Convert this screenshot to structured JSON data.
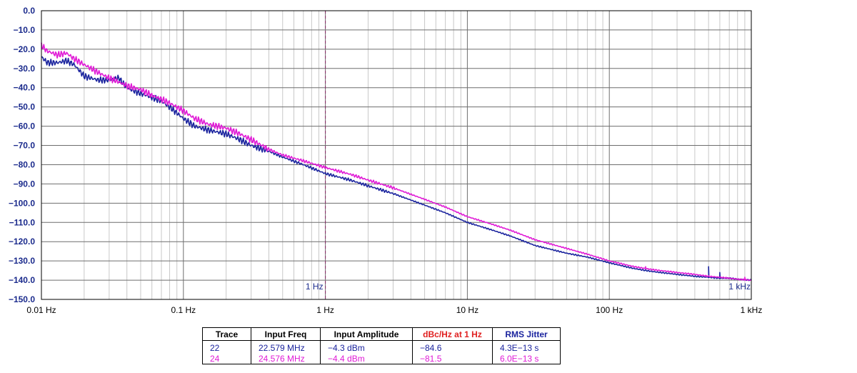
{
  "chart_data": {
    "type": "line",
    "x_scale": "log",
    "xlim": [
      0.01,
      1000
    ],
    "ylim": [
      -150,
      0
    ],
    "grid": true,
    "y_ticks": [
      "0.0",
      "-10.0",
      "-20.0",
      "-30.0",
      "-40.0",
      "-50.0",
      "-60.0",
      "-70.0",
      "-80.0",
      "-90.0",
      "-100.0",
      "-110.0",
      "-120.0",
      "-130.0",
      "-140.0",
      "-150.0"
    ],
    "x_ticks": [
      "0.01 Hz",
      "0.1 Hz",
      "1 Hz",
      "10 Hz",
      "100 Hz",
      "1 kHz"
    ],
    "markers": [
      {
        "x": 1,
        "label": "1 Hz",
        "color": "#8b2a6a"
      },
      {
        "x": 1000,
        "label": "1 kHz",
        "color": "#1a2a8c"
      }
    ],
    "series": [
      {
        "name": "22",
        "color": "#1a239e",
        "x": [
          0.01,
          0.011,
          0.013,
          0.015,
          0.017,
          0.02,
          0.025,
          0.03,
          0.035,
          0.04,
          0.05,
          0.06,
          0.07,
          0.08,
          0.1,
          0.12,
          0.15,
          0.2,
          0.25,
          0.3,
          0.4,
          0.5,
          0.7,
          1,
          1.5,
          2,
          3,
          5,
          7,
          10,
          15,
          20,
          30,
          50,
          70,
          100,
          150,
          200,
          300,
          400,
          500,
          600,
          700,
          800,
          1000
        ],
        "y": [
          -24,
          -27,
          -27,
          -26,
          -28,
          -34,
          -36,
          -36,
          -35,
          -40,
          -43,
          -45,
          -47,
          -50,
          -56,
          -60,
          -62,
          -64,
          -67,
          -70,
          -73,
          -76,
          -80,
          -84.6,
          -88,
          -91,
          -95,
          -101,
          -105,
          -110,
          -114,
          -117,
          -122,
          -126,
          -128,
          -131,
          -134,
          -135.5,
          -137,
          -138,
          -138.5,
          -139,
          -139,
          -139.5,
          -140
        ],
        "spikes": [
          {
            "x": 500,
            "y": -133
          },
          {
            "x": 600,
            "y": -136
          }
        ]
      },
      {
        "name": "24",
        "color": "#e01ad6",
        "x": [
          0.01,
          0.011,
          0.013,
          0.015,
          0.017,
          0.02,
          0.025,
          0.03,
          0.035,
          0.04,
          0.05,
          0.06,
          0.07,
          0.08,
          0.1,
          0.12,
          0.15,
          0.2,
          0.25,
          0.3,
          0.4,
          0.5,
          0.7,
          1,
          1.5,
          2,
          3,
          5,
          7,
          10,
          15,
          20,
          30,
          50,
          70,
          100,
          150,
          200,
          300,
          400,
          500,
          600,
          700,
          800,
          1000
        ],
        "y": [
          -18,
          -21,
          -23,
          -22,
          -25,
          -28,
          -32,
          -35,
          -37,
          -39,
          -41,
          -44,
          -46,
          -48,
          -52,
          -56,
          -59,
          -61,
          -64,
          -67,
          -72,
          -75,
          -78,
          -81.5,
          -85,
          -88,
          -92,
          -98,
          -102,
          -107,
          -111,
          -114,
          -119,
          -123.5,
          -126.5,
          -130,
          -133,
          -134.5,
          -136,
          -137,
          -138,
          -138.5,
          -139,
          -139.5,
          -140
        ],
        "spikes": [
          {
            "x": 180,
            "y": -133
          },
          {
            "x": 900,
            "y": -138.5
          }
        ]
      }
    ]
  },
  "legend_table": {
    "headers": [
      "Trace",
      "Input Freq",
      "Input Amplitude",
      "dBc/Hz at 1 Hz",
      "RMS Jitter"
    ],
    "header_colors": [
      "#000000",
      "#000000",
      "#000000",
      "#e02020",
      "#1a239e"
    ],
    "rows": [
      {
        "color": "#1a239e",
        "cells": [
          "22",
          "22.579 MHz",
          "−4.3 dBm",
          "−84.6",
          "4.3E−13 s"
        ]
      },
      {
        "color": "#e01ad6",
        "cells": [
          "24",
          "24.576 MHz",
          "−4.4 dBm",
          "−81.5",
          "6.0E−13 s"
        ]
      }
    ]
  }
}
